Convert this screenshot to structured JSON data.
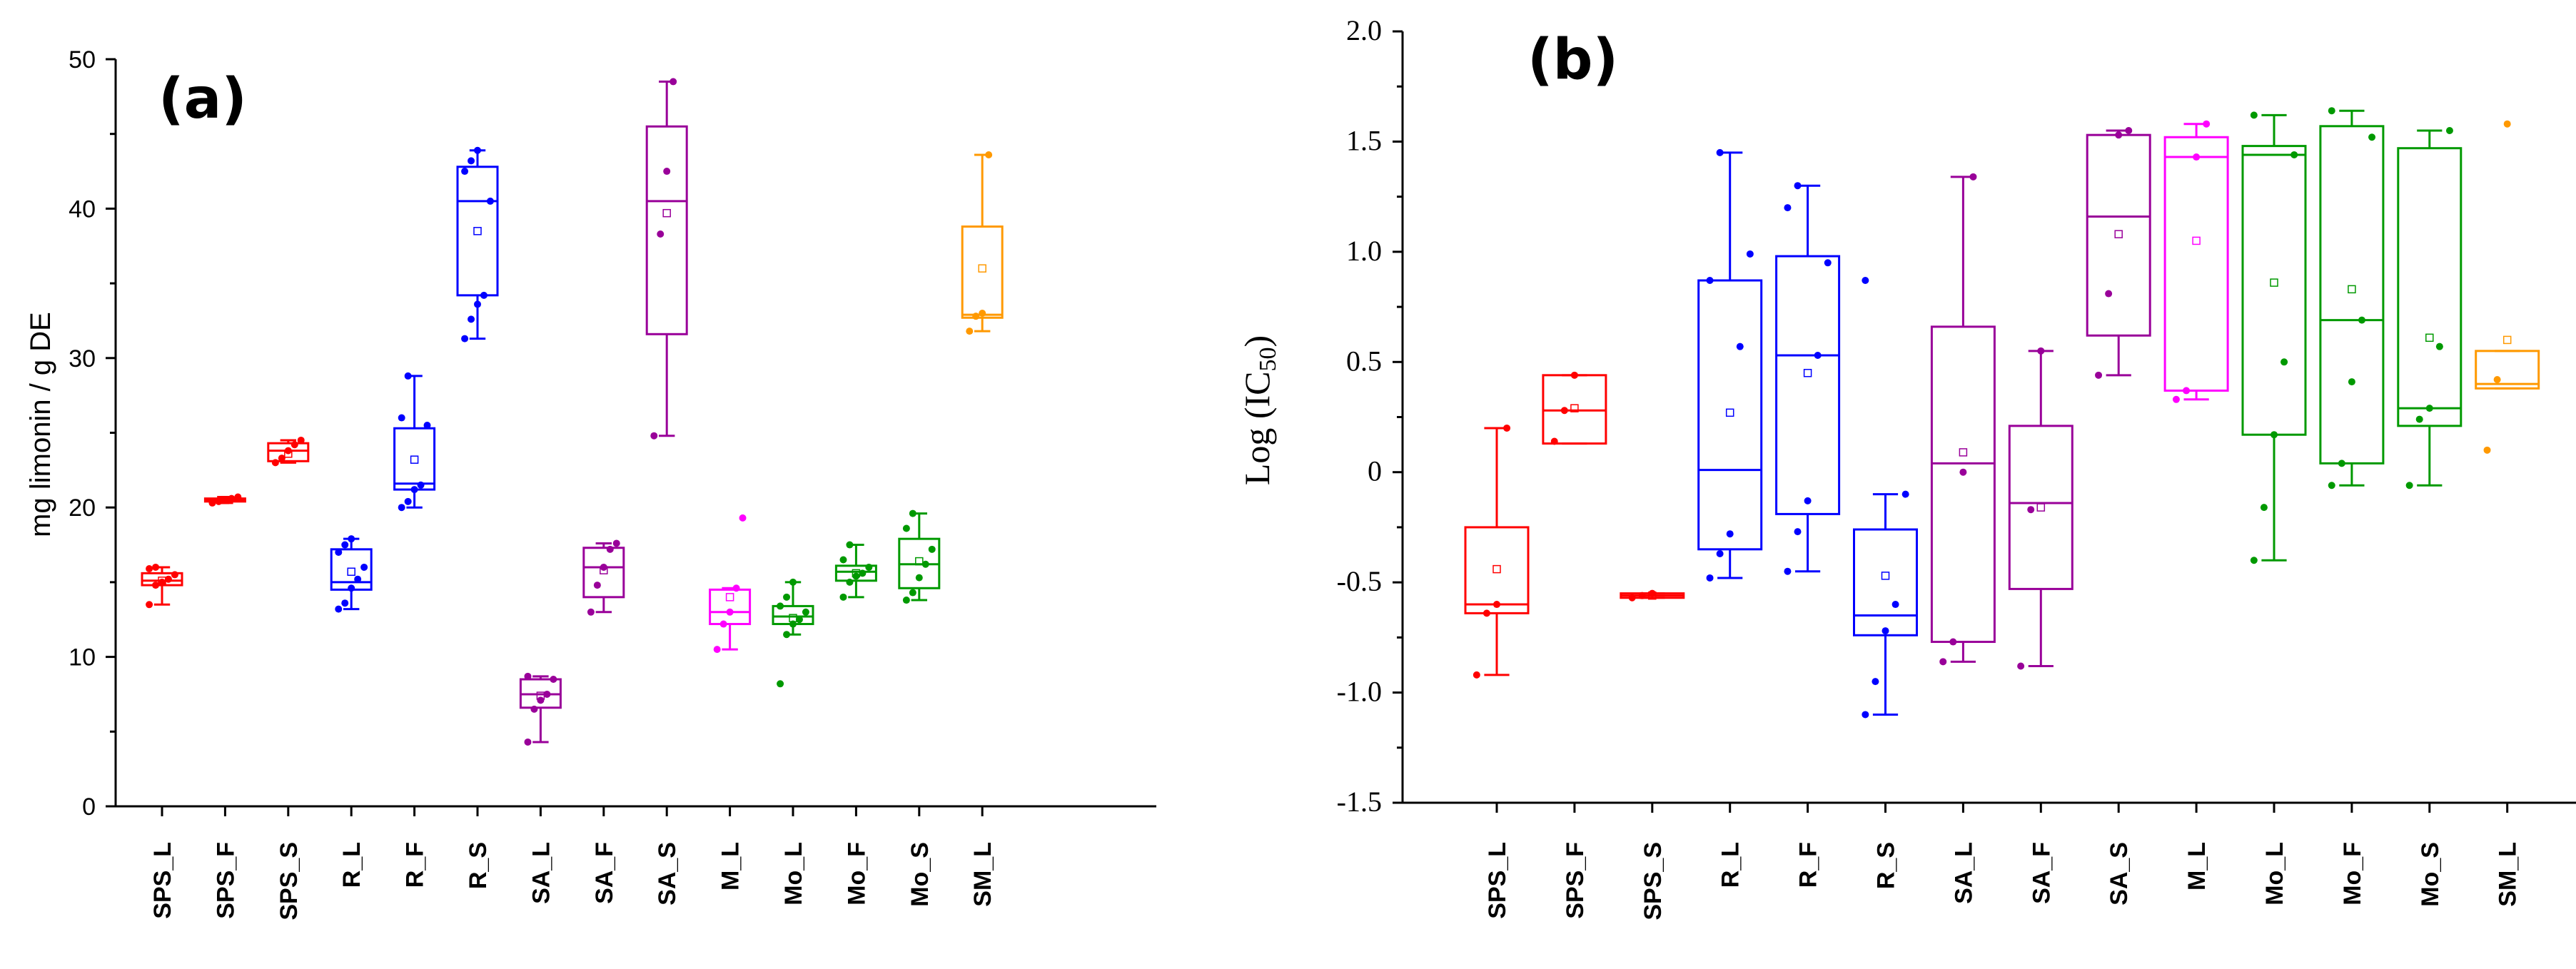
{
  "chart_data": [
    {
      "panel": "(a)",
      "type": "box",
      "title": "",
      "xlabel": "",
      "ylabel": "mg limonin / g DE",
      "ylim": [
        0,
        50
      ],
      "yticks": [
        0,
        10,
        20,
        30,
        40,
        50
      ],
      "categories": [
        "SPS_L",
        "SPS_F",
        "SPS_S",
        "R_L",
        "R_F",
        "R_S",
        "SA_L",
        "SA_F",
        "SA_S",
        "M_L",
        "Mo_L",
        "Mo_F",
        "Mo_S",
        "SM_L"
      ],
      "colors": [
        "#ff0000",
        "#ff0000",
        "#ff0000",
        "#0000ff",
        "#0000ff",
        "#0000ff",
        "#990099",
        "#990099",
        "#990099",
        "#ff00ff",
        "#009900",
        "#009900",
        "#009900",
        "#ff9900"
      ],
      "boxes": [
        {
          "whisker_low": 13.5,
          "q1": 14.8,
          "median": 15.1,
          "q3": 15.6,
          "whisker_high": 16.0,
          "mean": 15.1,
          "points": [
            13.5,
            14.8,
            15.0,
            15.2,
            15.5,
            15.9,
            16.0
          ]
        },
        {
          "whisker_low": 20.3,
          "q1": 20.4,
          "median": 20.5,
          "q3": 20.6,
          "whisker_high": 20.7,
          "mean": 20.5,
          "points": [
            20.3,
            20.4,
            20.5,
            20.6,
            20.7
          ]
        },
        {
          "whisker_low": 23.0,
          "q1": 23.1,
          "median": 23.8,
          "q3": 24.3,
          "whisker_high": 24.5,
          "mean": 23.6,
          "points": [
            23.0,
            23.3,
            23.8,
            24.2,
            24.5
          ]
        },
        {
          "whisker_low": 13.2,
          "q1": 14.5,
          "median": 15.0,
          "q3": 17.2,
          "whisker_high": 17.9,
          "mean": 15.7,
          "points": [
            13.2,
            13.6,
            14.6,
            15.2,
            16.0,
            17.0,
            17.5,
            17.9
          ]
        },
        {
          "whisker_low": 20.0,
          "q1": 21.2,
          "median": 21.6,
          "q3": 25.3,
          "whisker_high": 28.8,
          "mean": 23.2,
          "points": [
            20.0,
            20.4,
            21.2,
            21.5,
            25.5,
            26.0,
            28.8
          ]
        },
        {
          "whisker_low": 31.3,
          "q1": 34.2,
          "median": 40.5,
          "q3": 42.8,
          "whisker_high": 43.9,
          "mean": 38.5,
          "points": [
            31.3,
            32.6,
            33.6,
            34.2,
            40.5,
            42.5,
            43.2,
            43.9
          ]
        },
        {
          "whisker_low": 4.3,
          "q1": 6.6,
          "median": 7.5,
          "q3": 8.5,
          "whisker_high": 8.7,
          "mean": 7.4,
          "points": [
            4.3,
            6.5,
            7.1,
            7.5,
            8.5,
            8.7
          ]
        },
        {
          "whisker_low": 13.0,
          "q1": 14.0,
          "median": 16.0,
          "q3": 17.3,
          "whisker_high": 17.6,
          "mean": 15.8,
          "points": [
            13.0,
            14.8,
            16.0,
            17.2,
            17.6
          ]
        },
        {
          "whisker_low": 24.8,
          "q1": 31.6,
          "median": 40.5,
          "q3": 45.5,
          "whisker_high": 48.5,
          "mean": 39.7,
          "points": [
            24.8,
            38.3,
            42.5,
            48.5
          ]
        },
        {
          "whisker_low": 10.5,
          "q1": 12.2,
          "median": 13.0,
          "q3": 14.5,
          "whisker_high": 14.6,
          "mean": 14.0,
          "points": [
            10.5,
            12.2,
            13.0,
            14.6,
            19.3
          ]
        },
        {
          "whisker_low": 11.5,
          "q1": 12.2,
          "median": 12.7,
          "q3": 13.4,
          "whisker_high": 15.0,
          "mean": 12.6,
          "points": [
            8.2,
            11.5,
            12.2,
            12.5,
            13.0,
            13.4,
            14.0,
            15.0
          ]
        },
        {
          "whisker_low": 14.0,
          "q1": 15.1,
          "median": 15.7,
          "q3": 16.1,
          "whisker_high": 17.5,
          "mean": 15.6,
          "points": [
            14.0,
            15.0,
            15.4,
            15.6,
            16.0,
            16.5,
            17.5
          ]
        },
        {
          "whisker_low": 13.8,
          "q1": 14.6,
          "median": 16.2,
          "q3": 17.9,
          "whisker_high": 19.6,
          "mean": 16.4,
          "points": [
            13.8,
            14.3,
            15.3,
            16.2,
            17.2,
            18.6,
            19.6
          ]
        },
        {
          "whisker_low": 31.8,
          "q1": 32.7,
          "median": 32.9,
          "q3": 38.8,
          "whisker_high": 43.6,
          "mean": 36.0,
          "points": [
            31.8,
            32.8,
            33.0,
            43.6
          ]
        }
      ]
    },
    {
      "panel": "(b)",
      "type": "box",
      "title": "",
      "xlabel": "",
      "ylabel": "Log (IC50)",
      "ylabel_main": "Log (IC",
      "ylabel_sub": "50",
      "ylabel_close": ")",
      "ylim": [
        -1.5,
        2.0
      ],
      "yticks": [
        -1.5,
        -1.0,
        -0.5,
        0,
        0.5,
        1.0,
        1.5,
        2.0
      ],
      "ytick_labels": [
        "-1.5",
        "-1.0",
        "-0.5",
        "0",
        "0.5",
        "1.0",
        "1.5",
        "2.0"
      ],
      "categories": [
        "SPS_L",
        "SPS_F",
        "SPS_S",
        "R_L",
        "R_F",
        "R_S",
        "SA_L",
        "SA_F",
        "SA_S",
        "M_L",
        "Mo_L",
        "Mo_F",
        "Mo_S",
        "SM_L"
      ],
      "colors": [
        "#ff0000",
        "#ff0000",
        "#ff0000",
        "#0000ff",
        "#0000ff",
        "#0000ff",
        "#990099",
        "#990099",
        "#990099",
        "#ff00ff",
        "#009900",
        "#009900",
        "#009900",
        "#ff9900"
      ],
      "boxes": [
        {
          "whisker_low": -0.92,
          "q1": -0.64,
          "median": -0.6,
          "q3": -0.25,
          "whisker_high": 0.2,
          "mean": -0.44,
          "points": [
            -0.92,
            -0.64,
            -0.6,
            0.2
          ]
        },
        {
          "whisker_low": 0.13,
          "q1": 0.13,
          "median": 0.28,
          "q3": 0.44,
          "whisker_high": 0.44,
          "mean": 0.29,
          "points": [
            0.14,
            0.28,
            0.44
          ]
        },
        {
          "whisker_low": -0.57,
          "q1": -0.57,
          "median": -0.56,
          "q3": -0.55,
          "whisker_high": -0.55,
          "mean": -0.56,
          "points": [
            -0.57,
            -0.56,
            -0.55
          ]
        },
        {
          "whisker_low": -0.48,
          "q1": -0.35,
          "median": 0.01,
          "q3": 0.87,
          "whisker_high": 1.45,
          "mean": 0.27,
          "points": [
            -0.48,
            -0.37,
            -0.28,
            0.57,
            0.99,
            0.87,
            1.45
          ]
        },
        {
          "whisker_low": -0.45,
          "q1": -0.19,
          "median": 0.53,
          "q3": 0.98,
          "whisker_high": 1.3,
          "mean": 0.45,
          "points": [
            -0.45,
            -0.27,
            -0.13,
            0.53,
            0.95,
            1.2,
            1.3
          ]
        },
        {
          "whisker_low": -1.1,
          "q1": -0.74,
          "median": -0.65,
          "q3": -0.26,
          "whisker_high": -0.1,
          "mean": -0.47,
          "points": [
            -1.1,
            -0.95,
            -0.72,
            -0.6,
            -0.1,
            0.87
          ]
        },
        {
          "whisker_low": -0.86,
          "q1": -0.77,
          "median": 0.04,
          "q3": 0.66,
          "whisker_high": 1.34,
          "mean": 0.09,
          "points": [
            -0.86,
            -0.77,
            0.0,
            1.34
          ]
        },
        {
          "whisker_low": -0.88,
          "q1": -0.53,
          "median": -0.14,
          "q3": 0.21,
          "whisker_high": 0.55,
          "mean": -0.16,
          "points": [
            -0.88,
            -0.17,
            0.55
          ]
        },
        {
          "whisker_low": 0.44,
          "q1": 0.62,
          "median": 1.16,
          "q3": 1.53,
          "whisker_high": 1.55,
          "mean": 1.08,
          "points": [
            0.44,
            0.81,
            1.53,
            1.55
          ]
        },
        {
          "whisker_low": 0.33,
          "q1": 0.37,
          "median": 1.43,
          "q3": 1.52,
          "whisker_high": 1.58,
          "mean": 1.05,
          "points": [
            0.33,
            0.37,
            1.43,
            1.58
          ]
        },
        {
          "whisker_low": -0.4,
          "q1": 0.17,
          "median": 1.44,
          "q3": 1.48,
          "whisker_high": 1.62,
          "mean": 0.86,
          "points": [
            -0.4,
            -0.16,
            0.17,
            0.5,
            1.44,
            1.62
          ]
        },
        {
          "whisker_low": -0.06,
          "q1": 0.04,
          "median": 0.69,
          "q3": 1.57,
          "whisker_high": 1.64,
          "mean": 0.83,
          "points": [
            -0.06,
            0.04,
            0.41,
            0.69,
            1.52,
            1.64
          ]
        },
        {
          "whisker_low": -0.06,
          "q1": 0.21,
          "median": 0.29,
          "q3": 1.47,
          "whisker_high": 1.55,
          "mean": 0.61,
          "points": [
            -0.06,
            0.24,
            0.29,
            0.57,
            1.55
          ]
        },
        {
          "whisker_low": 0.38,
          "q1": 0.38,
          "median": 0.4,
          "q3": 0.55,
          "whisker_high": 0.55,
          "mean": 0.6,
          "points": [
            0.1,
            0.42,
            1.58
          ]
        }
      ]
    }
  ]
}
